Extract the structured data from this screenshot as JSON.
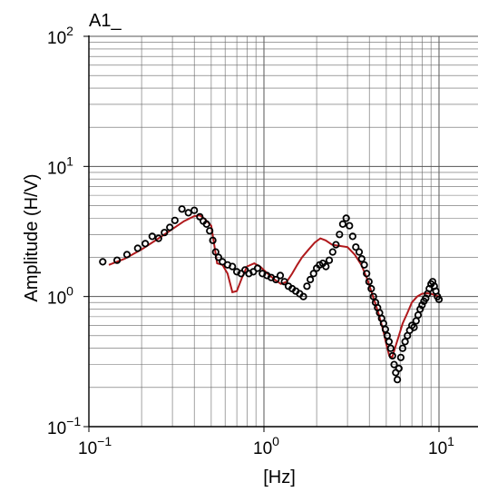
{
  "chart_data": {
    "type": "scatter",
    "title": "A1_",
    "xlabel": "[Hz]",
    "ylabel": "Amplitude (H/V)",
    "xscale": "log",
    "yscale": "log",
    "xlim": [
      0.1,
      20
    ],
    "ylim": [
      0.1,
      100
    ],
    "grid": true,
    "x_ticks": [
      {
        "base": "10",
        "exp": "−1"
      },
      {
        "base": "10",
        "exp": "0"
      },
      {
        "base": "10",
        "exp": "1"
      }
    ],
    "y_ticks": [
      {
        "base": "10",
        "exp": "−1"
      },
      {
        "base": "10",
        "exp": "0"
      },
      {
        "base": "10",
        "exp": "1"
      },
      {
        "base": "10",
        "exp": "2"
      }
    ],
    "series": [
      {
        "kind": "points",
        "color": "#000000",
        "marker": "open-circle",
        "x": [
          0.12,
          0.145,
          0.165,
          0.19,
          0.21,
          0.23,
          0.25,
          0.27,
          0.29,
          0.31,
          0.34,
          0.37,
          0.4,
          0.43,
          0.45,
          0.47,
          0.49,
          0.51,
          0.53,
          0.55,
          0.58,
          0.62,
          0.66,
          0.7,
          0.74,
          0.78,
          0.82,
          0.87,
          0.92,
          0.98,
          1.04,
          1.1,
          1.17,
          1.24,
          1.31,
          1.38,
          1.45,
          1.52,
          1.6,
          1.68,
          1.76,
          1.84,
          1.92,
          2.0,
          2.08,
          2.17,
          2.26,
          2.36,
          2.47,
          2.58,
          2.7,
          2.82,
          2.95,
          3.08,
          3.21,
          3.35,
          3.5,
          3.62,
          3.74,
          3.86,
          3.98,
          4.1,
          4.22,
          4.34,
          4.46,
          4.58,
          4.7,
          4.82,
          4.94,
          5.06,
          5.18,
          5.3,
          5.42,
          5.54,
          5.66,
          5.78,
          5.9,
          6.05,
          6.2,
          6.4,
          6.6,
          6.8,
          7.0,
          7.2,
          7.4,
          7.6,
          7.8,
          8.0,
          8.2,
          8.4,
          8.6,
          8.8,
          9.0,
          9.2,
          9.4,
          9.6,
          9.8,
          10.0
        ],
        "y": [
          1.85,
          1.9,
          2.1,
          2.35,
          2.55,
          2.9,
          2.8,
          3.1,
          3.4,
          3.85,
          4.7,
          4.4,
          4.6,
          4.1,
          3.8,
          3.6,
          3.2,
          2.7,
          2.2,
          2.0,
          1.85,
          1.75,
          1.7,
          1.55,
          1.5,
          1.6,
          1.5,
          1.55,
          1.65,
          1.5,
          1.45,
          1.4,
          1.35,
          1.45,
          1.3,
          1.2,
          1.15,
          1.1,
          1.05,
          1.0,
          1.2,
          1.35,
          1.5,
          1.65,
          1.75,
          1.8,
          1.7,
          1.9,
          2.2,
          2.5,
          3.0,
          3.6,
          4.0,
          3.5,
          2.9,
          2.4,
          2.2,
          1.95,
          1.75,
          1.5,
          1.3,
          1.15,
          1.0,
          0.9,
          0.82,
          0.75,
          0.68,
          0.62,
          0.56,
          0.5,
          0.45,
          0.4,
          0.35,
          0.3,
          0.26,
          0.23,
          0.28,
          0.34,
          0.4,
          0.45,
          0.5,
          0.55,
          0.6,
          0.58,
          0.65,
          0.72,
          0.8,
          0.86,
          0.92,
          0.97,
          1.05,
          1.15,
          1.25,
          1.3,
          1.2,
          1.1,
          1.0,
          0.95
        ]
      },
      {
        "kind": "line",
        "color": "#b0191c",
        "x": [
          0.13,
          0.16,
          0.2,
          0.25,
          0.3,
          0.35,
          0.4,
          0.43,
          0.46,
          0.5,
          0.54,
          0.58,
          0.62,
          0.66,
          0.7,
          0.75,
          0.8,
          0.88,
          0.95,
          1.05,
          1.15,
          1.25,
          1.35,
          1.45,
          1.55,
          1.65,
          1.8,
          1.95,
          2.1,
          2.25,
          2.45,
          2.7,
          3.0,
          3.3,
          3.6,
          3.9,
          4.2,
          4.5,
          4.8,
          5.0,
          5.2,
          5.4,
          5.6,
          5.9,
          6.2,
          6.6,
          7.0,
          7.5,
          8.0,
          8.5,
          9.0,
          9.5,
          10.0
        ],
        "y": [
          1.75,
          1.95,
          2.3,
          2.8,
          3.3,
          3.8,
          4.15,
          4.2,
          3.95,
          3.5,
          1.8,
          1.75,
          1.5,
          1.08,
          1.1,
          1.4,
          1.7,
          1.8,
          1.7,
          1.5,
          1.35,
          1.25,
          1.3,
          1.5,
          1.75,
          2.0,
          2.3,
          2.6,
          2.8,
          2.7,
          2.5,
          2.45,
          2.4,
          2.1,
          1.75,
          1.35,
          1.0,
          0.75,
          0.55,
          0.43,
          0.35,
          0.34,
          0.4,
          0.5,
          0.62,
          0.75,
          0.9,
          1.0,
          1.05,
          1.06,
          1.05,
          1.02,
          1.0
        ]
      }
    ]
  }
}
